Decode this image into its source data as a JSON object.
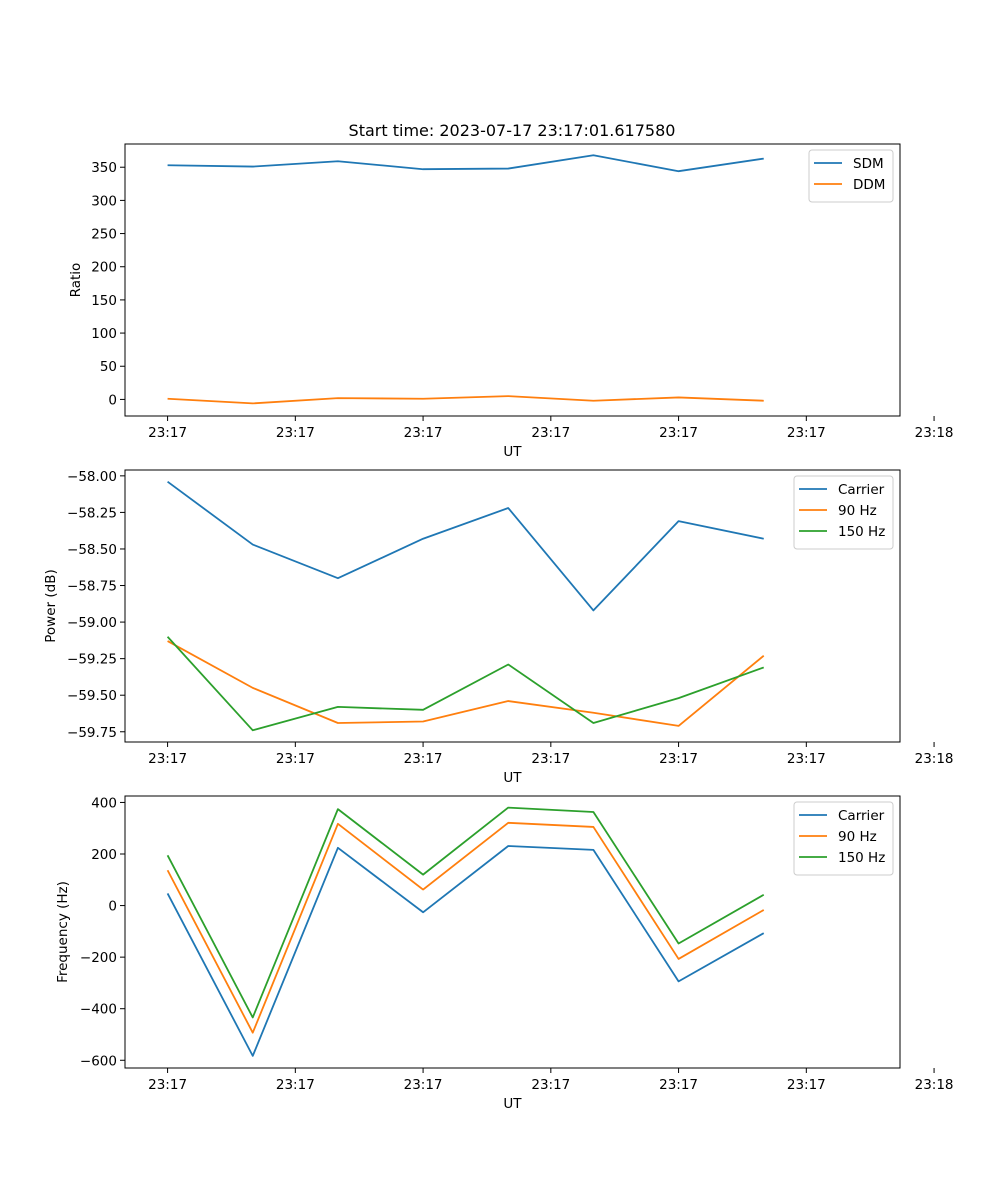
{
  "figure": {
    "title": "Start time: 2023-07-17 23:17:01.617580"
  },
  "colors": {
    "series1": "#1f77b4",
    "series2": "#ff7f0e",
    "series3": "#2ca02c",
    "axis": "#000000",
    "legend_border": "#cccccc"
  },
  "chart_data": [
    {
      "type": "line",
      "title": "Start time: 2023-07-17 23:17:01.617580",
      "xlabel": "UT",
      "ylabel": "Ratio",
      "xlim": [
        -0.5,
        8.6
      ],
      "ylim": [
        -25,
        385
      ],
      "x_ticks": [
        0,
        1.5,
        3,
        4.5,
        6,
        7.5,
        9
      ],
      "x_tick_labels": [
        "23:17",
        "23:17",
        "23:17",
        "23:17",
        "23:17",
        "23:17",
        "23:18"
      ],
      "y_ticks": [
        0,
        50,
        100,
        150,
        200,
        250,
        300,
        350
      ],
      "y_tick_labels": [
        "0",
        "50",
        "100",
        "150",
        "200",
        "250",
        "300",
        "350"
      ],
      "x": [
        0,
        1,
        2,
        3,
        4,
        5,
        6,
        7
      ],
      "series": [
        {
          "name": "SDM",
          "color_key": "series1",
          "values": [
            353,
            351,
            359,
            347,
            348,
            368,
            344,
            363
          ]
        },
        {
          "name": "DDM",
          "color_key": "series2",
          "values": [
            1,
            -6,
            2,
            1,
            5,
            -2,
            3,
            -2
          ]
        }
      ],
      "legend": "top-right",
      "grid": false
    },
    {
      "type": "line",
      "title": "",
      "xlabel": "UT",
      "ylabel": "Power (dB)",
      "xlim": [
        -0.5,
        8.6
      ],
      "ylim": [
        -59.82,
        -57.96
      ],
      "x_ticks": [
        0,
        1.5,
        3,
        4.5,
        6,
        7.5,
        9
      ],
      "x_tick_labels": [
        "23:17",
        "23:17",
        "23:17",
        "23:17",
        "23:17",
        "23:17",
        "23:18"
      ],
      "y_ticks": [
        -59.75,
        -59.5,
        -59.25,
        -59.0,
        -58.75,
        -58.5,
        -58.25,
        -58.0
      ],
      "y_tick_labels": [
        "−59.75",
        "−59.50",
        "−59.25",
        "−59.00",
        "−58.75",
        "−58.50",
        "−58.25",
        "−58.00"
      ],
      "x": [
        0,
        1,
        2,
        3,
        4,
        5,
        6,
        7
      ],
      "series": [
        {
          "name": "Carrier",
          "color_key": "series1",
          "values": [
            -58.04,
            -58.47,
            -58.7,
            -58.43,
            -58.22,
            -58.92,
            -58.31,
            -58.43
          ]
        },
        {
          "name": "90 Hz",
          "color_key": "series2",
          "values": [
            -59.13,
            -59.45,
            -59.69,
            -59.68,
            -59.54,
            -59.62,
            -59.71,
            -59.23
          ]
        },
        {
          "name": "150 Hz",
          "color_key": "series3",
          "values": [
            -59.1,
            -59.74,
            -59.58,
            -59.6,
            -59.29,
            -59.69,
            -59.52,
            -59.31
          ]
        }
      ],
      "legend": "top-right",
      "grid": false
    },
    {
      "type": "line",
      "title": "",
      "xlabel": "UT",
      "ylabel": "Frequency (Hz)",
      "xlim": [
        -0.5,
        8.6
      ],
      "ylim": [
        -630,
        425
      ],
      "x_ticks": [
        0,
        1.5,
        3,
        4.5,
        6,
        7.5,
        9
      ],
      "x_tick_labels": [
        "23:17",
        "23:17",
        "23:17",
        "23:17",
        "23:17",
        "23:17",
        "23:18"
      ],
      "y_ticks": [
        -600,
        -400,
        -200,
        0,
        200,
        400
      ],
      "y_tick_labels": [
        "−600",
        "−400",
        "−200",
        "0",
        "200",
        "400"
      ],
      "x": [
        0,
        1,
        2,
        3,
        4,
        5,
        6,
        7
      ],
      "series": [
        {
          "name": "Carrier",
          "color_key": "series1",
          "values": [
            47,
            -583,
            224,
            -26,
            231,
            216,
            -294,
            -107
          ]
        },
        {
          "name": "90 Hz",
          "color_key": "series2",
          "values": [
            137,
            -493,
            317,
            62,
            321,
            305,
            -207,
            -17
          ]
        },
        {
          "name": "150 Hz",
          "color_key": "series3",
          "values": [
            195,
            -434,
            374,
            120,
            380,
            363,
            -147,
            42
          ]
        }
      ],
      "legend": "top-right",
      "grid": false
    }
  ]
}
